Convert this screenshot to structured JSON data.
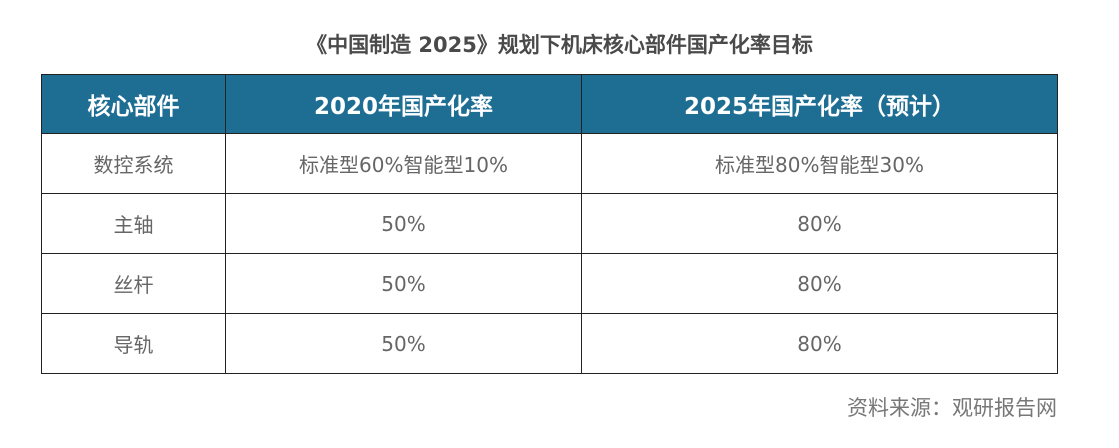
{
  "title": "《中国制造 2025》规划下机床核心部件国产化率目标",
  "table": {
    "headers": [
      "核心部件",
      "2020年国产化率",
      "2025年国产化率（预计）"
    ],
    "rows": [
      [
        "数控系统",
        "标准型60%智能型10%",
        "标准型80%智能型30%"
      ],
      [
        "主轴",
        "50%",
        "80%"
      ],
      [
        "丝杆",
        "50%",
        "80%"
      ],
      [
        "导轨",
        "50%",
        "80%"
      ]
    ]
  },
  "source": "资料来源：观研报告网",
  "colors": {
    "header_bg": "#1e6e94",
    "header_text": "#ffffff",
    "cell_text": "#666666",
    "border": "#222222"
  }
}
